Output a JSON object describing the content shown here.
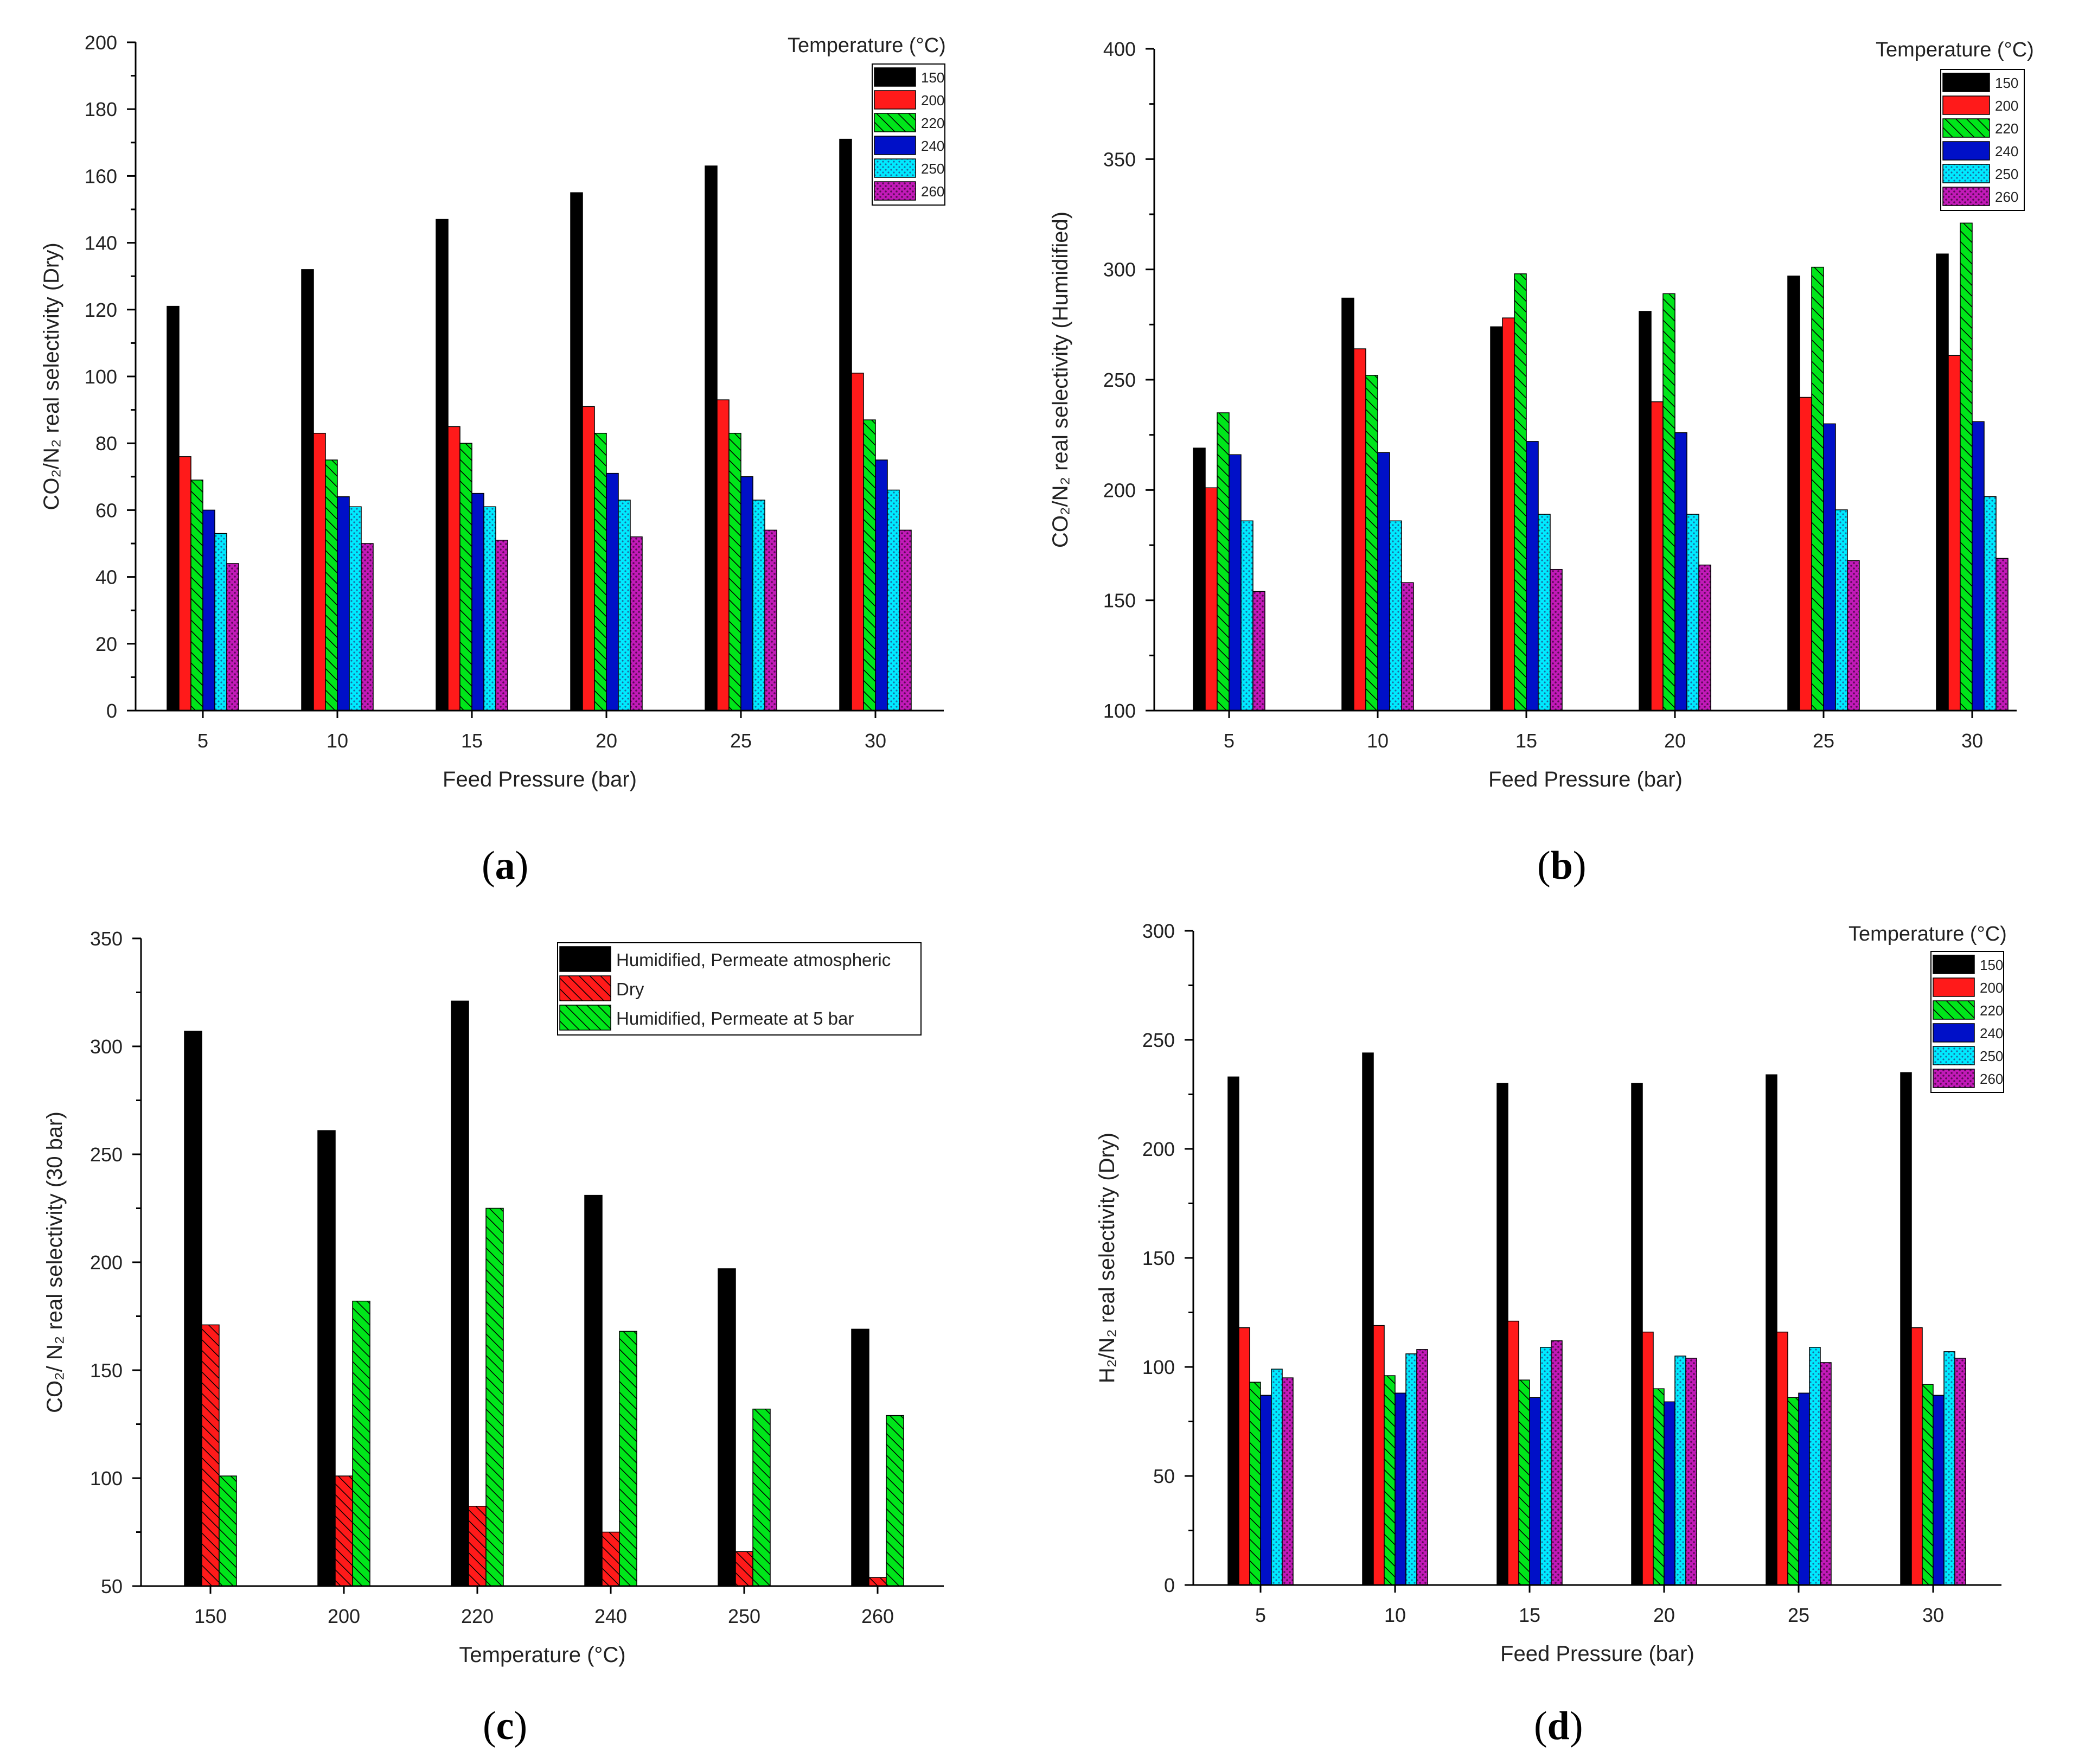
{
  "colors": {
    "150": "#000000",
    "200": "#ff1a1a",
    "220": "#00e61a",
    "240": "#0010c8",
    "250": "#00eaff",
    "260": "#c21ab8"
  },
  "patterns": {
    "150": "solid",
    "200": "solid",
    "220": "hatch",
    "240": "solid",
    "250": "dots",
    "260": "dots"
  },
  "chart_data": [
    {
      "id": "a",
      "label": "a",
      "type": "bar",
      "ylabel": "CO₂/N₂ real selectivity (Dry)",
      "xlabel": "Feed Pressure (bar)",
      "ylim": [
        0,
        200
      ],
      "yticks": [
        0,
        20,
        40,
        60,
        80,
        100,
        120,
        140,
        160,
        180,
        200
      ],
      "yminor": 10,
      "categories": [
        "5",
        "10",
        "15",
        "20",
        "25",
        "30"
      ],
      "legend_title": "Temperature (°C)",
      "series": [
        {
          "name": "150",
          "key": "150",
          "values": [
            121,
            132,
            147,
            155,
            163,
            171
          ]
        },
        {
          "name": "200",
          "key": "200",
          "values": [
            76,
            83,
            85,
            91,
            93,
            101
          ]
        },
        {
          "name": "220",
          "key": "220",
          "values": [
            69,
            75,
            80,
            83,
            83,
            87
          ]
        },
        {
          "name": "240",
          "key": "240",
          "values": [
            60,
            64,
            65,
            71,
            70,
            75
          ]
        },
        {
          "name": "250",
          "key": "250",
          "values": [
            53,
            61,
            61,
            63,
            63,
            66
          ]
        },
        {
          "name": "260",
          "key": "260",
          "values": [
            44,
            50,
            51,
            52,
            54,
            54
          ]
        }
      ]
    },
    {
      "id": "b",
      "label": "b",
      "type": "bar",
      "ylabel": "CO₂/N₂ real selectivity (Humidified)",
      "xlabel": "Feed Pressure (bar)",
      "ylim": [
        100,
        400
      ],
      "yticks": [
        100,
        150,
        200,
        250,
        300,
        350,
        400
      ],
      "yminor": 25,
      "categories": [
        "5",
        "10",
        "15",
        "20",
        "25",
        "30"
      ],
      "legend_title": "Temperature (°C)",
      "series": [
        {
          "name": "150",
          "key": "150",
          "values": [
            219,
            287,
            274,
            281,
            297,
            307
          ]
        },
        {
          "name": "200",
          "key": "200",
          "values": [
            201,
            264,
            278,
            240,
            242,
            261
          ]
        },
        {
          "name": "220",
          "key": "220",
          "values": [
            235,
            252,
            298,
            289,
            301,
            321
          ]
        },
        {
          "name": "240",
          "key": "240",
          "values": [
            216,
            217,
            222,
            226,
            230,
            231
          ]
        },
        {
          "name": "250",
          "key": "250",
          "values": [
            186,
            186,
            189,
            189,
            191,
            197
          ]
        },
        {
          "name": "260",
          "key": "260",
          "values": [
            154,
            158,
            164,
            166,
            168,
            169
          ]
        }
      ]
    },
    {
      "id": "c",
      "label": "c",
      "type": "bar",
      "ylabel": "CO₂/ N₂ real selectivity (30 bar)",
      "xlabel": "Temperature (°C)",
      "ylim": [
        50,
        350
      ],
      "yticks": [
        50,
        100,
        150,
        200,
        250,
        300,
        350
      ],
      "yminor": 25,
      "categories": [
        "150",
        "200",
        "220",
        "240",
        "250",
        "260"
      ],
      "legend_title": "",
      "series": [
        {
          "name": "Humidified, Permeate atmospheric",
          "key": "150",
          "values": [
            307,
            261,
            321,
            231,
            197,
            169
          ]
        },
        {
          "name": "Dry",
          "key": "200",
          "pattern": "hatch",
          "values": [
            171,
            101,
            87,
            75,
            66,
            54
          ]
        },
        {
          "name": "Humidified, Permeate at 5 bar",
          "key": "220",
          "values": [
            101,
            182,
            225,
            168,
            132,
            129
          ]
        }
      ]
    },
    {
      "id": "d",
      "label": "d",
      "type": "bar",
      "ylabel": "H₂/N₂ real selectivity (Dry)",
      "xlabel": "Feed Pressure (bar)",
      "ylim": [
        0,
        300
      ],
      "yticks": [
        0,
        50,
        100,
        150,
        200,
        250,
        300
      ],
      "yminor": 25,
      "categories": [
        "5",
        "10",
        "15",
        "20",
        "25",
        "30"
      ],
      "legend_title": "Temperature (°C)",
      "series": [
        {
          "name": "150",
          "key": "150",
          "values": [
            233,
            244,
            230,
            230,
            234,
            235
          ]
        },
        {
          "name": "200",
          "key": "200",
          "values": [
            118,
            119,
            121,
            116,
            116,
            118
          ]
        },
        {
          "name": "220",
          "key": "220",
          "values": [
            93,
            96,
            94,
            90,
            86,
            92
          ]
        },
        {
          "name": "240",
          "key": "240",
          "values": [
            87,
            88,
            86,
            84,
            88,
            87
          ]
        },
        {
          "name": "250",
          "key": "250",
          "values": [
            99,
            106,
            109,
            105,
            109,
            107
          ]
        },
        {
          "name": "260",
          "key": "260",
          "values": [
            95,
            108,
            112,
            104,
            102,
            104
          ]
        }
      ]
    }
  ]
}
